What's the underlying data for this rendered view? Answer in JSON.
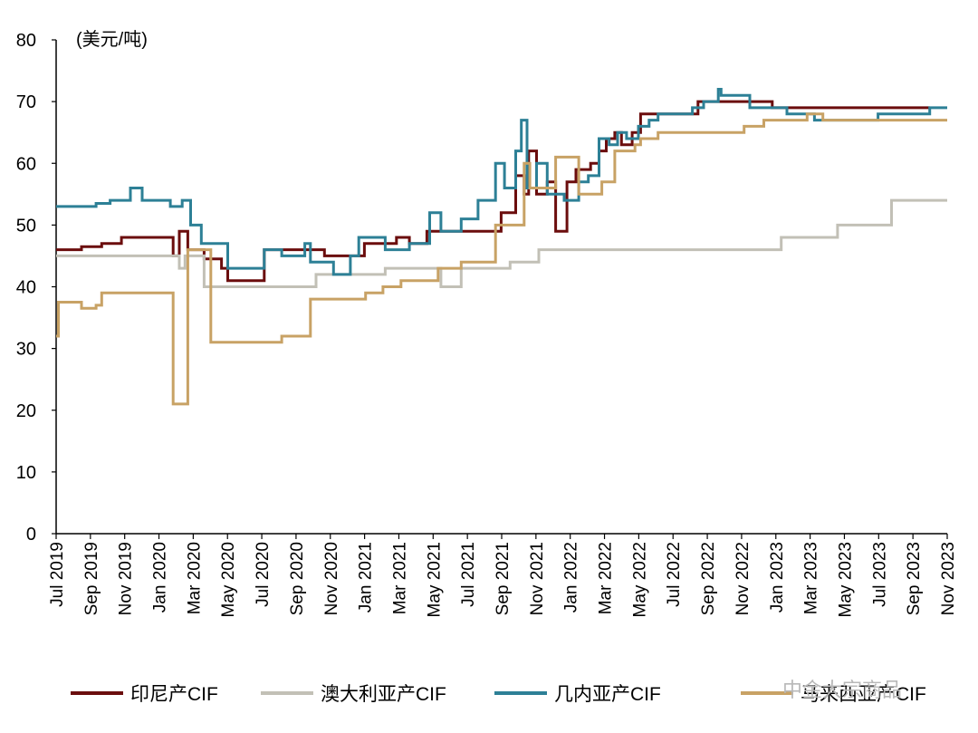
{
  "chart_data": {
    "type": "line",
    "title": "",
    "unit_label": "(美元/吨)",
    "ylim": [
      0,
      80
    ],
    "y_ticks": [
      "0",
      "10",
      "20",
      "30",
      "40",
      "50",
      "60",
      "70",
      "80"
    ],
    "x_tick_labels": [
      "Jul 2019",
      "Sep 2019",
      "Nov 2019",
      "Jan 2020",
      "Mar 2020",
      "May 2020",
      "Jul 2020",
      "Sep 2020",
      "Nov 2020",
      "Jan 2021",
      "Mar 2021",
      "May 2021",
      "Jul 2021",
      "Sep 2021",
      "Nov 2021",
      "Jan 2022",
      "Mar 2022",
      "May 2022",
      "Jul 2022",
      "Sep 2022",
      "Nov 2022",
      "Jan 2023",
      "Mar 2023",
      "May 2023",
      "Jul 2023",
      "Sep 2023",
      "Nov 2023"
    ],
    "x_range": [
      "2019-07-01",
      "2023-11-01"
    ],
    "grid": false,
    "legend_position": "bottom",
    "series": [
      {
        "name": "印尼产CIF",
        "color": "#6b0d0d",
        "points": [
          [
            "2019-07-01",
            46
          ],
          [
            "2019-08-15",
            46.5
          ],
          [
            "2019-09-20",
            47
          ],
          [
            "2019-10-25",
            48
          ],
          [
            "2020-01-15",
            48
          ],
          [
            "2020-01-25",
            45
          ],
          [
            "2020-02-05",
            49
          ],
          [
            "2020-02-20",
            46
          ],
          [
            "2020-03-20",
            44.5
          ],
          [
            "2020-04-20",
            43
          ],
          [
            "2020-05-01",
            41
          ],
          [
            "2020-06-30",
            41
          ],
          [
            "2020-07-05",
            46
          ],
          [
            "2020-09-25",
            46
          ],
          [
            "2020-10-20",
            45
          ],
          [
            "2020-12-15",
            45
          ],
          [
            "2020-12-30",
            47
          ],
          [
            "2021-02-25",
            48
          ],
          [
            "2021-03-20",
            47
          ],
          [
            "2021-04-20",
            49
          ],
          [
            "2021-06-20",
            49
          ],
          [
            "2021-08-15",
            49
          ],
          [
            "2021-08-30",
            52
          ],
          [
            "2021-09-25",
            58
          ],
          [
            "2021-10-10",
            55
          ],
          [
            "2021-10-18",
            62
          ],
          [
            "2021-11-01",
            55
          ],
          [
            "2021-11-20",
            57
          ],
          [
            "2021-12-05",
            49
          ],
          [
            "2021-12-25",
            57
          ],
          [
            "2022-01-10",
            59
          ],
          [
            "2022-02-05",
            60
          ],
          [
            "2022-02-20",
            62
          ],
          [
            "2022-03-05",
            64
          ],
          [
            "2022-03-20",
            65
          ],
          [
            "2022-04-01",
            63
          ],
          [
            "2022-04-20",
            65
          ],
          [
            "2022-05-05",
            68
          ],
          [
            "2022-06-15",
            68
          ],
          [
            "2022-08-15",
            70
          ],
          [
            "2022-10-20",
            70
          ],
          [
            "2022-12-10",
            70
          ],
          [
            "2022-12-25",
            69
          ],
          [
            "2023-09-25",
            69
          ],
          [
            "2023-10-01",
            69
          ]
        ]
      },
      {
        "name": "澳大利亚产CIF",
        "color": "#c2c0b6",
        "points": [
          [
            "2019-07-01",
            45
          ],
          [
            "2020-02-01",
            45
          ],
          [
            "2020-02-05",
            43
          ],
          [
            "2020-02-15",
            45
          ],
          [
            "2020-03-20",
            40
          ],
          [
            "2020-09-25",
            40
          ],
          [
            "2020-10-05",
            42
          ],
          [
            "2021-01-25",
            42
          ],
          [
            "2021-02-05",
            43
          ],
          [
            "2021-03-20",
            43
          ],
          [
            "2021-05-15",
            40
          ],
          [
            "2021-06-20",
            43
          ],
          [
            "2021-09-01",
            43
          ],
          [
            "2021-09-15",
            44
          ],
          [
            "2021-11-01",
            44
          ],
          [
            "2021-11-05",
            46
          ],
          [
            "2023-01-05",
            46
          ],
          [
            "2023-01-10",
            48
          ],
          [
            "2023-04-15",
            48
          ],
          [
            "2023-04-20",
            50
          ],
          [
            "2023-07-20",
            50
          ],
          [
            "2023-07-25",
            54
          ],
          [
            "2023-11-01",
            54
          ]
        ]
      },
      {
        "name": "几内亚产CIF",
        "color": "#2d8096",
        "points": [
          [
            "2019-07-01",
            53
          ],
          [
            "2019-09-10",
            53.5
          ],
          [
            "2019-10-05",
            54
          ],
          [
            "2019-11-10",
            56
          ],
          [
            "2019-12-01",
            54
          ],
          [
            "2020-01-20",
            53
          ],
          [
            "2020-02-10",
            54
          ],
          [
            "2020-02-25",
            50
          ],
          [
            "2020-03-15",
            47
          ],
          [
            "2020-05-01",
            43
          ],
          [
            "2020-07-01",
            43
          ],
          [
            "2020-07-05",
            46
          ],
          [
            "2020-08-05",
            45
          ],
          [
            "2020-09-15",
            47
          ],
          [
            "2020-09-25",
            44
          ],
          [
            "2020-11-05",
            42
          ],
          [
            "2020-12-05",
            45
          ],
          [
            "2020-12-20",
            48
          ],
          [
            "2021-02-05",
            46
          ],
          [
            "2021-03-20",
            47
          ],
          [
            "2021-04-25",
            52
          ],
          [
            "2021-05-15",
            49
          ],
          [
            "2021-06-20",
            51
          ],
          [
            "2021-07-20",
            54
          ],
          [
            "2021-08-20",
            60
          ],
          [
            "2021-09-05",
            56
          ],
          [
            "2021-09-25",
            62
          ],
          [
            "2021-10-05",
            67
          ],
          [
            "2021-10-15",
            56
          ],
          [
            "2021-11-01",
            60
          ],
          [
            "2021-11-20",
            55
          ],
          [
            "2021-12-20",
            54
          ],
          [
            "2022-01-15",
            57
          ],
          [
            "2022-02-01",
            58
          ],
          [
            "2022-02-20",
            64
          ],
          [
            "2022-03-10",
            63
          ],
          [
            "2022-03-25",
            65
          ],
          [
            "2022-04-10",
            64
          ],
          [
            "2022-05-01",
            66
          ],
          [
            "2022-05-20",
            67
          ],
          [
            "2022-06-05",
            68
          ],
          [
            "2022-08-05",
            69
          ],
          [
            "2022-08-25",
            70
          ],
          [
            "2022-09-20",
            72
          ],
          [
            "2022-09-25",
            71
          ],
          [
            "2022-11-05",
            71
          ],
          [
            "2022-11-15",
            69
          ],
          [
            "2023-01-01",
            69
          ],
          [
            "2023-01-20",
            68
          ],
          [
            "2023-02-25",
            68
          ],
          [
            "2023-03-10",
            67
          ],
          [
            "2023-07-01",
            68
          ],
          [
            "2023-09-25",
            68
          ],
          [
            "2023-10-01",
            69
          ],
          [
            "2023-11-01",
            69
          ]
        ]
      },
      {
        "name": "马来西亚产CIF",
        "color": "#c8a265",
        "points": [
          [
            "2019-07-01",
            32
          ],
          [
            "2019-07-05",
            37.5
          ],
          [
            "2019-08-05",
            37.5
          ],
          [
            "2019-08-15",
            36.5
          ],
          [
            "2019-09-10",
            37
          ],
          [
            "2019-09-20",
            39
          ],
          [
            "2020-01-20",
            39
          ],
          [
            "2020-01-25",
            21
          ],
          [
            "2020-02-15",
            21
          ],
          [
            "2020-02-20",
            46
          ],
          [
            "2020-03-25",
            46
          ],
          [
            "2020-04-01",
            31
          ],
          [
            "2020-07-15",
            31
          ],
          [
            "2020-08-05",
            32
          ],
          [
            "2020-09-15",
            32
          ],
          [
            "2020-09-25",
            38
          ],
          [
            "2020-12-20",
            38
          ],
          [
            "2021-01-01",
            39
          ],
          [
            "2021-02-01",
            40
          ],
          [
            "2021-03-05",
            41
          ],
          [
            "2021-05-05",
            41
          ],
          [
            "2021-05-10",
            43
          ],
          [
            "2021-06-20",
            44
          ],
          [
            "2021-08-10",
            44
          ],
          [
            "2021-08-20",
            50
          ],
          [
            "2021-09-25",
            50
          ],
          [
            "2021-10-10",
            60
          ],
          [
            "2021-10-20",
            56
          ],
          [
            "2021-11-20",
            56
          ],
          [
            "2021-12-05",
            61
          ],
          [
            "2022-01-05",
            61
          ],
          [
            "2022-01-15",
            55
          ],
          [
            "2022-02-25",
            57
          ],
          [
            "2022-03-20",
            62
          ],
          [
            "2022-04-25",
            63
          ],
          [
            "2022-05-05",
            64
          ],
          [
            "2022-06-05",
            65
          ],
          [
            "2022-10-20",
            65
          ],
          [
            "2022-11-05",
            66
          ],
          [
            "2022-12-10",
            67
          ],
          [
            "2023-02-05",
            67
          ],
          [
            "2023-02-25",
            68
          ],
          [
            "2023-03-25",
            67
          ],
          [
            "2023-11-01",
            67
          ]
        ]
      }
    ]
  },
  "watermark": "中金大宗商品"
}
